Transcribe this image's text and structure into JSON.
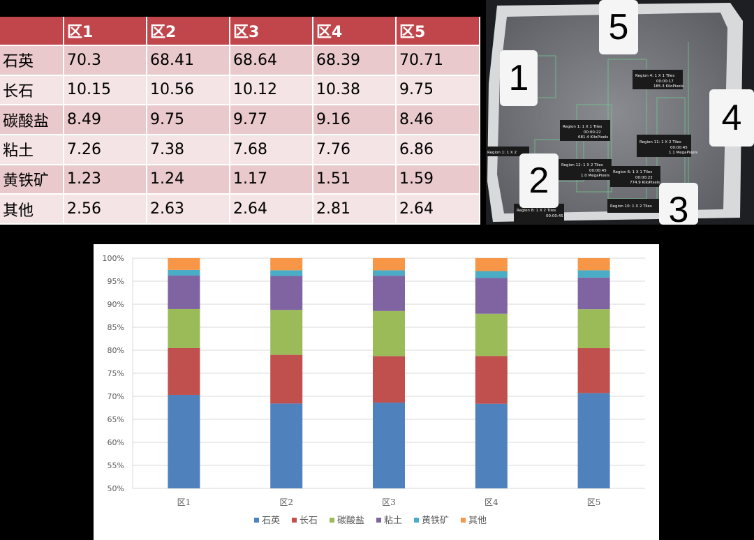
{
  "table": {
    "headers": [
      "",
      "区1",
      "区2",
      "区3",
      "区4",
      "区5"
    ],
    "rows": [
      {
        "label": "石英",
        "values": [
          "70.3",
          "68.41",
          "68.64",
          "68.39",
          "70.71"
        ]
      },
      {
        "label": "长石",
        "values": [
          "10.15",
          "10.56",
          "10.12",
          "10.38",
          "9.75"
        ]
      },
      {
        "label": "碳酸盐",
        "values": [
          "8.49",
          "9.75",
          "9.77",
          "9.16",
          "8.46"
        ]
      },
      {
        "label": "粘土",
        "values": [
          "7.26",
          "7.38",
          "7.68",
          "7.76",
          "6.86"
        ]
      },
      {
        "label": "黄铁矿",
        "values": [
          "1.23",
          "1.24",
          "1.17",
          "1.51",
          "1.59"
        ]
      },
      {
        "label": "其他",
        "values": [
          "2.56",
          "2.63",
          "2.64",
          "2.81",
          "2.64"
        ]
      }
    ]
  },
  "photo": {
    "region_numbers": [
      "1",
      "2",
      "3",
      "4",
      "5"
    ],
    "region_tags": [
      {
        "title": "Region 4: 1 X 1 Tiles",
        "time": "00:00:17",
        "size": "185.3 KiloPixels"
      },
      {
        "title": "Region 1: 1 X 1 Tiles",
        "time": "00:00:22",
        "size": "681.4 KiloPixels"
      },
      {
        "title": "Region 11: 1 X 2 Tiles",
        "time": "00:00:45",
        "size": "1.1 MegaPixels"
      },
      {
        "title": "Region 12: 1 X 2 Tiles",
        "time": "00:00:45",
        "size": "1.0 MegaPixels"
      },
      {
        "title": "Region 6: 1 X 1 Tiles",
        "time": "00:00:22",
        "size": "774.9 KiloPixels"
      },
      {
        "title": "Region 10: 1 X 2 Tiles",
        "time": "",
        "size": ""
      },
      {
        "title": "Region 8: 1 X 2 Tiles",
        "time": "00:00:45",
        "size": ""
      },
      {
        "title": "Region 1: 1 X 2",
        "time": "",
        "size": ""
      }
    ]
  },
  "chart_data": {
    "type": "bar",
    "stacked": "percent",
    "categories": [
      "区1",
      "区2",
      "区3",
      "区4",
      "区5"
    ],
    "series": [
      {
        "name": "石英",
        "color": "#4f81bd",
        "values": [
          70.3,
          68.41,
          68.64,
          68.39,
          70.71
        ]
      },
      {
        "name": "长石",
        "color": "#c0504d",
        "values": [
          10.15,
          10.56,
          10.12,
          10.38,
          9.75
        ]
      },
      {
        "name": "碳酸盐",
        "color": "#9bbb59",
        "values": [
          8.49,
          9.75,
          9.77,
          9.16,
          8.46
        ]
      },
      {
        "name": "粘土",
        "color": "#8064a2",
        "values": [
          7.26,
          7.38,
          7.68,
          7.76,
          6.86
        ]
      },
      {
        "name": "黄铁矿",
        "color": "#4bacc6",
        "values": [
          1.23,
          1.24,
          1.17,
          1.51,
          1.59
        ]
      },
      {
        "name": "其他",
        "color": "#f79646",
        "values": [
          2.56,
          2.63,
          2.64,
          2.81,
          2.64
        ]
      }
    ],
    "yticks": [
      "50%",
      "55%",
      "60%",
      "65%",
      "70%",
      "75%",
      "80%",
      "85%",
      "90%",
      "95%",
      "100%"
    ],
    "ylim": [
      50,
      100
    ],
    "legend_position": "bottom",
    "grid": true
  }
}
